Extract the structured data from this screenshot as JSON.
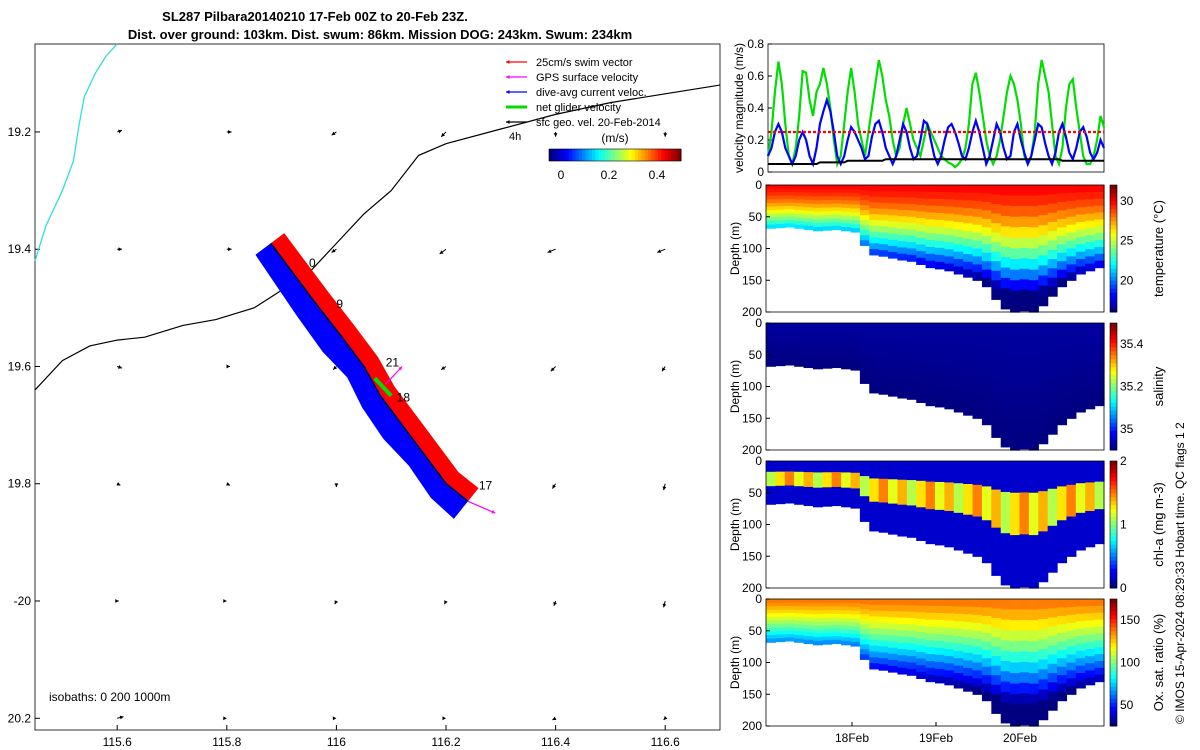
{
  "title": {
    "line1": "SL287 Pilbara20140210 17-Feb 00Z to 20-Feb 23Z.",
    "line2": "Dist. over ground: 103km. Dist. swum: 86km. Mission DOG: 243km. Swum: 234km"
  },
  "footer": "© IMOS 15-Apr-2024 08:29:33 Hobart time. QC flags 1 2",
  "colors": {
    "swim_vector": "#ff0000",
    "gps_surface_velocity": "#ff00ff",
    "dive_avg_current": "#0000ff",
    "net_glider_velocity": "#00dd00",
    "sfc_geo": "#000000",
    "coast": "#33dddd",
    "isobath": "#000000"
  },
  "chart_data": [
    {
      "type": "scatter",
      "name": "map",
      "xlim": [
        115.45,
        116.7
      ],
      "ylim": [
        -20.22,
        -19.05
      ],
      "xticks": [
        115.6,
        115.8,
        116,
        116.2,
        116.4,
        116.6
      ],
      "xtick_labels": [
        "115.6",
        "115.8",
        "116",
        "116.2",
        "116.4",
        "116.6"
      ],
      "yticks": [
        -19.2,
        -19.4,
        -19.6,
        -19.8,
        -20,
        -20.2
      ],
      "ytick_labels": [
        "19.2",
        "19.4",
        "19.6",
        "19.8",
        "-20",
        "20.2"
      ],
      "legend": {
        "placement": "top-right",
        "entries": [
          "25cm/s swim vector",
          "GPS surface velocity",
          "dive-avg current veloc.",
          "net glider velocity",
          "sfc geo. vel. 20-Feb-2014"
        ],
        "extra": "4h"
      },
      "colorbar": {
        "title": "(m/s)",
        "ticks": [
          0,
          0.2,
          0.4
        ],
        "tick_labels": [
          "0",
          "0.2",
          "0.4"
        ],
        "range": [
          -0.05,
          0.5
        ]
      },
      "isobath_note": "isobaths: 0   200  1000m",
      "track": [
        [
          115.88,
          -19.39
        ],
        [
          115.92,
          -19.44
        ],
        [
          115.96,
          -19.49
        ],
        [
          116.01,
          -19.55
        ],
        [
          116.05,
          -19.6
        ],
        [
          116.08,
          -19.65
        ],
        [
          116.12,
          -19.7
        ],
        [
          116.16,
          -19.75
        ],
        [
          116.2,
          -19.8
        ],
        [
          116.24,
          -19.83
        ]
      ],
      "track_labels": [
        {
          "text": "0",
          "x": 115.95,
          "y": -19.43
        },
        {
          "text": "9",
          "x": 116.0,
          "y": -19.5
        },
        {
          "text": "21",
          "x": 116.09,
          "y": -19.6
        },
        {
          "text": "18",
          "x": 116.11,
          "y": -19.66
        },
        {
          "text": "17",
          "x": 116.26,
          "y": -19.81
        }
      ],
      "isobath_line": [
        [
          115.45,
          -19.64
        ],
        [
          115.5,
          -19.59
        ],
        [
          115.55,
          -19.565
        ],
        [
          115.6,
          -19.555
        ],
        [
          115.65,
          -19.55
        ],
        [
          115.72,
          -19.53
        ],
        [
          115.78,
          -19.52
        ],
        [
          115.85,
          -19.5
        ],
        [
          115.9,
          -19.47
        ],
        [
          115.95,
          -19.44
        ],
        [
          116.0,
          -19.39
        ],
        [
          116.05,
          -19.34
        ],
        [
          116.1,
          -19.3
        ],
        [
          116.15,
          -19.24
        ],
        [
          116.2,
          -19.22
        ],
        [
          116.3,
          -19.195
        ],
        [
          116.4,
          -19.17
        ],
        [
          116.5,
          -19.15
        ],
        [
          116.6,
          -19.135
        ],
        [
          116.7,
          -19.12
        ]
      ],
      "coast_line": [
        [
          115.45,
          -19.42
        ],
        [
          115.47,
          -19.36
        ],
        [
          115.5,
          -19.3
        ],
        [
          115.52,
          -19.25
        ],
        [
          115.53,
          -19.19
        ],
        [
          115.54,
          -19.14
        ],
        [
          115.56,
          -19.1
        ],
        [
          115.58,
          -19.07
        ],
        [
          115.6,
          -19.05
        ]
      ],
      "sfc_vel_u": [
        [
          0.03,
          0.03,
          -0.03,
          -0.03,
          0.0,
          0.0
        ],
        [
          0.03,
          0.03,
          -0.03,
          -0.04,
          -0.05,
          -0.05
        ],
        [
          0.03,
          0.02,
          -0.02,
          -0.03,
          -0.03,
          -0.02
        ],
        [
          0.02,
          0.02,
          0.0,
          -0.01,
          -0.02,
          -0.01
        ],
        [
          0.01,
          0.0,
          -0.01,
          -0.01,
          -0.01,
          -0.01
        ],
        [
          0.04,
          0.0,
          0.0,
          0.0,
          -0.02,
          -0.01
        ]
      ],
      "sfc_vel_v": [
        [
          0.01,
          0.0,
          -0.02,
          -0.03,
          -0.03,
          -0.03
        ],
        [
          0.0,
          0.0,
          -0.02,
          -0.03,
          -0.02,
          -0.02
        ],
        [
          -0.01,
          0.0,
          -0.02,
          -0.02,
          -0.03,
          -0.03
        ],
        [
          -0.01,
          -0.01,
          -0.02,
          -0.02,
          -0.03,
          -0.04
        ],
        [
          0.0,
          0.0,
          -0.02,
          -0.02,
          -0.03,
          -0.04
        ],
        [
          0.01,
          0.0,
          0.0,
          0.0,
          -0.01,
          -0.01
        ]
      ]
    },
    {
      "type": "line",
      "name": "velocity",
      "xlim": [
        0,
        100
      ],
      "ylim": [
        0,
        0.8
      ],
      "ylabel": "velocity magnitude (m/s)",
      "yticks": [
        0,
        0.2,
        0.4,
        0.6,
        0.8
      ],
      "ytick_labels": [
        "0",
        "0.2",
        "0.4",
        "0.6",
        "0.8"
      ],
      "series": [
        {
          "color": "#00dd00",
          "values": [
            0.1,
            0.25,
            0.5,
            0.69,
            0.55,
            0.3,
            0.1,
            0.05,
            0.15,
            0.35,
            0.63,
            0.62,
            0.45,
            0.35,
            0.5,
            0.55,
            0.65,
            0.55,
            0.4,
            0.2,
            0.05,
            0.1,
            0.3,
            0.5,
            0.65,
            0.5,
            0.3,
            0.2,
            0.1,
            0.25,
            0.4,
            0.55,
            0.7,
            0.6,
            0.45,
            0.35,
            0.2,
            0.1,
            0.15,
            0.3,
            0.4,
            0.3,
            0.2,
            0.15,
            0.1,
            0.2,
            0.3,
            0.25,
            0.2,
            0.15,
            0.1,
            0.08,
            0.06,
            0.05,
            0.03,
            0.05,
            0.08,
            0.15,
            0.3,
            0.55,
            0.62,
            0.5,
            0.35,
            0.2,
            0.1,
            0.05,
            0.1,
            0.2,
            0.35,
            0.5,
            0.6,
            0.55,
            0.45,
            0.3,
            0.1,
            0.05,
            0.1,
            0.25,
            0.55,
            0.7,
            0.6,
            0.5,
            0.3,
            0.1,
            0.05,
            0.15,
            0.4,
            0.55,
            0.58,
            0.4,
            0.25,
            0.1,
            0.05,
            0.05,
            0.1,
            0.2,
            0.35,
            0.28
          ]
        },
        {
          "color": "#0000ff",
          "values": [
            0.1,
            0.15,
            0.25,
            0.3,
            0.25,
            0.15,
            0.1,
            0.05,
            0.1,
            0.2,
            0.25,
            0.2,
            0.1,
            0.05,
            0.15,
            0.3,
            0.38,
            0.45,
            0.38,
            0.25,
            0.1,
            0.05,
            0.1,
            0.2,
            0.28,
            0.25,
            0.2,
            0.15,
            0.08,
            0.1,
            0.22,
            0.3,
            0.32,
            0.25,
            0.15,
            0.1,
            0.05,
            0.1,
            0.2,
            0.3,
            0.25,
            0.15,
            0.08,
            0.1,
            0.2,
            0.32,
            0.3,
            0.2,
            0.1,
            0.05,
            0.1,
            0.2,
            0.28,
            0.3,
            0.25,
            0.18,
            0.1,
            0.08,
            0.15,
            0.25,
            0.32,
            0.25,
            0.15,
            0.05,
            0.1,
            0.2,
            0.3,
            0.25,
            0.15,
            0.08,
            0.1,
            0.25,
            0.3,
            0.2,
            0.12,
            0.05,
            0.1,
            0.2,
            0.3,
            0.28,
            0.18,
            0.1,
            0.05,
            0.12,
            0.25,
            0.3,
            0.22,
            0.12,
            0.08,
            0.15,
            0.25,
            0.28,
            0.22,
            0.12,
            0.08,
            0.12,
            0.2,
            0.15
          ]
        },
        {
          "color": "#ff0000",
          "dashed": true,
          "values": [
            0.25,
            0.25,
            0.25,
            0.25,
            0.25,
            0.25,
            0.25,
            0.25,
            0.25,
            0.25,
            0.25,
            0.25,
            0.25,
            0.25,
            0.25,
            0.25,
            0.25,
            0.25,
            0.25,
            0.25,
            0.25,
            0.25,
            0.25,
            0.25,
            0.25,
            0.25,
            0.25,
            0.25,
            0.25,
            0.25,
            0.25,
            0.25,
            0.25,
            0.25,
            0.25,
            0.25,
            0.25,
            0.25,
            0.25,
            0.25,
            0.25,
            0.25,
            0.25,
            0.25,
            0.25,
            0.25,
            0.25,
            0.25,
            0.25,
            0.25,
            0.25,
            0.25,
            0.25,
            0.25,
            0.25,
            0.25,
            0.25,
            0.25,
            0.25,
            0.25,
            0.25,
            0.25,
            0.25,
            0.25,
            0.25,
            0.25,
            0.25,
            0.25,
            0.25,
            0.25,
            0.25,
            0.25,
            0.25,
            0.25,
            0.25,
            0.25,
            0.25,
            0.25,
            0.25,
            0.25,
            0.25,
            0.25,
            0.25,
            0.25,
            0.25,
            0.25,
            0.25,
            0.25,
            0.25,
            0.25,
            0.25,
            0.25,
            0.25,
            0.25,
            0.25,
            0.25,
            0.25,
            0.25
          ]
        },
        {
          "color": "#000000",
          "values": [
            0.05,
            0.05,
            0.05,
            0.05,
            0.05,
            0.05,
            0.05,
            0.05,
            0.05,
            0.05,
            0.05,
            0.05,
            0.05,
            0.05,
            0.05,
            0.06,
            0.06,
            0.06,
            0.06,
            0.06,
            0.06,
            0.06,
            0.06,
            0.07,
            0.07,
            0.07,
            0.07,
            0.07,
            0.07,
            0.07,
            0.07,
            0.07,
            0.07,
            0.07,
            0.08,
            0.08,
            0.08,
            0.08,
            0.08,
            0.08,
            0.08,
            0.08,
            0.08,
            0.08,
            0.08,
            0.08,
            0.08,
            0.08,
            0.08,
            0.08,
            0.08,
            0.08,
            0.08,
            0.08,
            0.08,
            0.08,
            0.08,
            0.08,
            0.08,
            0.08,
            0.08,
            0.08,
            0.08,
            0.08,
            0.08,
            0.08,
            0.08,
            0.08,
            0.08,
            0.08,
            0.08,
            0.08,
            0.08,
            0.08,
            0.08,
            0.08,
            0.08,
            0.08,
            0.08,
            0.08,
            0.08,
            0.08,
            0.08,
            0.08,
            0.08,
            0.07,
            0.07,
            0.07,
            0.07,
            0.07,
            0.07,
            0.07,
            0.07,
            0.07,
            0.07,
            0.07,
            0.07,
            0.07
          ]
        }
      ]
    },
    {
      "type": "heatmap",
      "name": "temperature",
      "ylabel": "Depth (m)",
      "yticks": [
        0,
        50,
        100,
        150,
        200
      ],
      "ytick_labels": [
        "0",
        "50",
        "100",
        "150",
        "200"
      ],
      "colorbar_label": "temperature (°C)",
      "colorbar_ticks": [
        20,
        25,
        30
      ],
      "colorbar_tick_labels": [
        "20",
        "25",
        "30"
      ],
      "colorbar_range": [
        16,
        32
      ],
      "bottom_depth": [
        68,
        67,
        66,
        68,
        70,
        72,
        71,
        70,
        72,
        74,
        95,
        110,
        112,
        115,
        118,
        120,
        125,
        130,
        132,
        135,
        140,
        145,
        150,
        160,
        180,
        195,
        200,
        198,
        200,
        190,
        175,
        160,
        150,
        140,
        135,
        130
      ],
      "surface_value": 30,
      "bottom_value": 17
    },
    {
      "type": "heatmap",
      "name": "salinity",
      "ylabel": "Depth (m)",
      "yticks": [
        0,
        50,
        100,
        150,
        200
      ],
      "ytick_labels": [
        "0",
        "50",
        "100",
        "150",
        "200"
      ],
      "colorbar_label": "salinity",
      "colorbar_ticks": [
        35,
        35.2,
        35.4
      ],
      "colorbar_tick_labels": [
        "35",
        "35.2",
        "35.4"
      ],
      "colorbar_range": [
        34.9,
        35.5
      ],
      "bottom_depth": [
        68,
        67,
        66,
        68,
        70,
        72,
        71,
        70,
        72,
        74,
        95,
        110,
        112,
        115,
        118,
        120,
        125,
        130,
        132,
        135,
        140,
        145,
        150,
        160,
        180,
        195,
        200,
        198,
        200,
        190,
        175,
        160,
        150,
        140,
        135,
        130
      ],
      "surface_value": 34.92,
      "bottom_value": 34.9
    },
    {
      "type": "heatmap",
      "name": "chl-a",
      "ylabel": "Depth (m)",
      "yticks": [
        0,
        50,
        100,
        150,
        200
      ],
      "ytick_labels": [
        "0",
        "50",
        "100",
        "150",
        "200"
      ],
      "colorbar_label": "chl-a (mg m-3)",
      "colorbar_ticks": [
        0,
        1,
        2
      ],
      "colorbar_tick_labels": [
        "0",
        "1",
        "2"
      ],
      "colorbar_range": [
        0,
        2
      ],
      "bottom_depth": [
        68,
        67,
        66,
        68,
        70,
        72,
        71,
        70,
        72,
        74,
        95,
        110,
        112,
        115,
        118,
        120,
        125,
        130,
        132,
        135,
        140,
        145,
        150,
        160,
        180,
        195,
        200,
        198,
        200,
        190,
        175,
        160,
        150,
        140,
        135,
        130
      ],
      "surface_value": 0.2,
      "bottom_value": 0.1
    },
    {
      "type": "heatmap",
      "name": "oxygen",
      "ylabel": "Depth (m)",
      "yticks": [
        0,
        50,
        100,
        150,
        200
      ],
      "ytick_labels": [
        "0",
        "50",
        "100",
        "150",
        "200"
      ],
      "xticks": [
        "18Feb",
        "19Feb",
        "20Feb"
      ],
      "colorbar_label": "Ox. sat. ratio (%)",
      "colorbar_ticks": [
        50,
        100,
        150
      ],
      "colorbar_tick_labels": [
        "50",
        "100",
        "150"
      ],
      "colorbar_range": [
        25,
        175
      ],
      "bottom_depth": [
        68,
        67,
        66,
        68,
        70,
        72,
        71,
        70,
        72,
        74,
        95,
        110,
        112,
        115,
        118,
        120,
        125,
        130,
        132,
        135,
        140,
        145,
        150,
        160,
        180,
        195,
        200,
        198,
        200,
        190,
        175,
        160,
        150,
        140,
        135,
        130
      ],
      "surface_value": 140,
      "bottom_value": 35
    }
  ]
}
